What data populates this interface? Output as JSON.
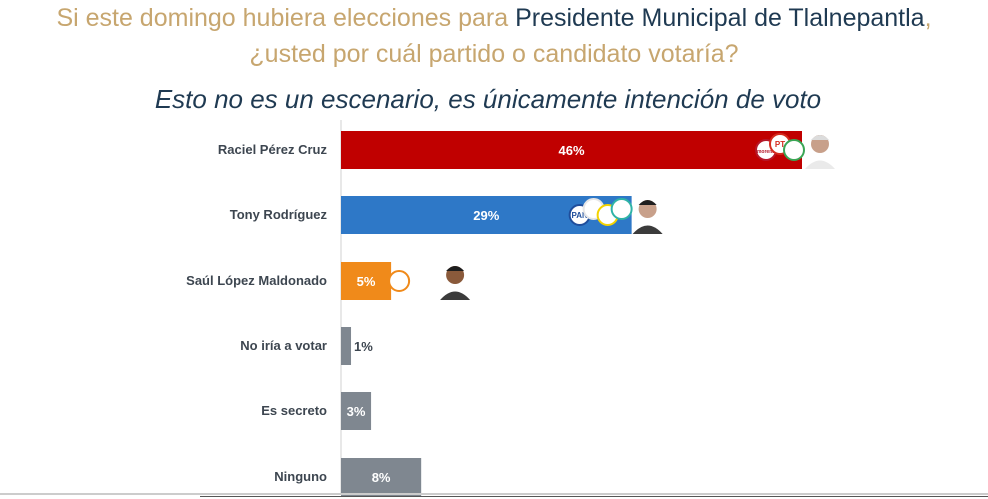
{
  "header": {
    "question_part1": "Si este domingo hubiera elecciones para ",
    "question_part1_strong": "Presidente Municipal de Tlalnepantla",
    "question_part1_end": ",",
    "question_part2": "¿usted por cuál partido o candidato votaría?",
    "subtitle": "Esto no es un escenario, es únicamente intención de voto"
  },
  "colors": {
    "red": "#c00000",
    "blue": "#2e78c7",
    "orange": "#f08a1a",
    "gray": "#7f8790",
    "gold": "#c7a66f",
    "navy": "#1f3a52"
  },
  "chart_data": {
    "type": "bar",
    "orientation": "horizontal",
    "categories": [
      "Raciel Pérez Cruz",
      "Tony Rodríguez",
      "Saúl López Maldonado",
      "No iría a votar",
      "Es secreto",
      "Ninguno"
    ],
    "values": [
      46,
      29,
      5,
      1,
      3,
      8
    ],
    "value_labels": [
      "46%",
      "29%",
      "5%",
      "1%",
      "3%",
      "8%"
    ],
    "bar_colors": [
      "#c00000",
      "#2e78c7",
      "#f08a1a",
      "#7f8790",
      "#7f8790",
      "#7f8790"
    ],
    "xlim": [
      0,
      46
    ],
    "title": "Esto no es un escenario, es únicamente intención de voto",
    "xlabel": "",
    "ylabel": "",
    "party_badges": [
      {
        "bar": 0,
        "badges": [
          {
            "text": "morena",
            "color": "#b5192a"
          },
          {
            "text": "PT",
            "color": "#d52b1e"
          },
          {
            "text": "",
            "color": "#3aa655"
          }
        ]
      },
      {
        "bar": 1,
        "badges": [
          {
            "text": "PAN",
            "color": "#1f4e9c"
          },
          {
            "text": "",
            "color": "#e6e6e6"
          },
          {
            "text": "",
            "color": "#f4d300"
          },
          {
            "text": "",
            "color": "#2fb3a7"
          }
        ]
      },
      {
        "bar": 2,
        "badges": [
          {
            "text": "",
            "color": "#f08a1a"
          }
        ]
      }
    ],
    "grid": false,
    "legend": "none"
  }
}
